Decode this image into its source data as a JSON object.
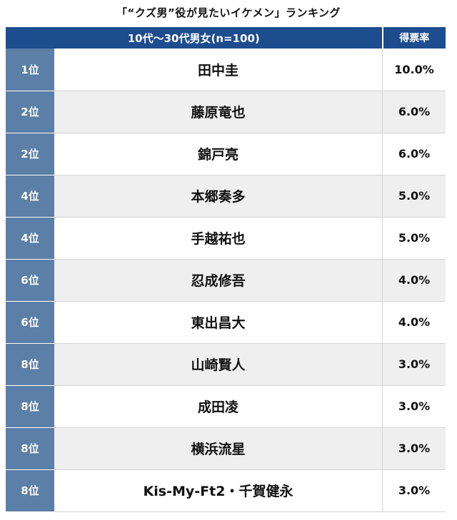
{
  "title": "「“クズ男”役が見たいイケメン」ランキング",
  "chart_data": {
    "type": "table",
    "title": "「“クズ男”役が見たいイケメン」ランキング",
    "columns": [
      "10代〜30代男女(n=100)",
      "得票率"
    ],
    "rows": [
      {
        "rank": "1位",
        "name": "田中圭",
        "score": "10.0%"
      },
      {
        "rank": "2位",
        "name": "藤原竜也",
        "score": "6.0%"
      },
      {
        "rank": "2位",
        "name": "錦戸亮",
        "score": "6.0%"
      },
      {
        "rank": "4位",
        "name": "本郷奏多",
        "score": "5.0%"
      },
      {
        "rank": "4位",
        "name": "手越祐也",
        "score": "5.0%"
      },
      {
        "rank": "6位",
        "name": "忍成修吾",
        "score": "4.0%"
      },
      {
        "rank": "6位",
        "name": "東出昌大",
        "score": "4.0%"
      },
      {
        "rank": "8位",
        "name": "山崎賢人",
        "score": "3.0%"
      },
      {
        "rank": "8位",
        "name": "成田凌",
        "score": "3.0%"
      },
      {
        "rank": "8位",
        "name": "横浜流星",
        "score": "3.0%"
      },
      {
        "rank": "8位",
        "name": "Kis-My-Ft2・千賀健永",
        "score": "3.0%"
      }
    ]
  },
  "colors": {
    "header_bg": "#1d4c8f",
    "rank_bg": "#5b7fa6",
    "alt_row_bg": "#efefef"
  }
}
